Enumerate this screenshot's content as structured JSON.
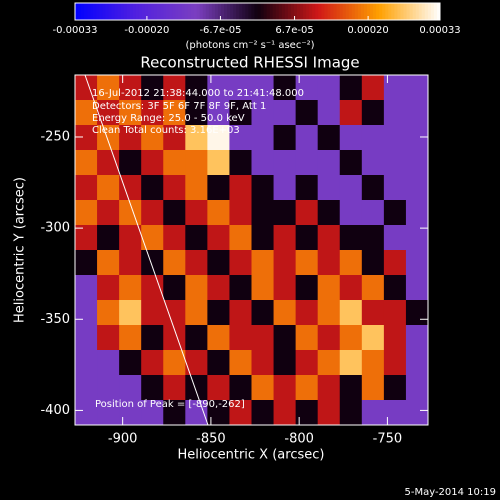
{
  "chart_data": {
    "type": "heatmap",
    "title": "Reconstructed RHESSI Image",
    "colorbar_label": "(photons cm⁻² s⁻¹ asec⁻²)",
    "xlabel": "Heliocentric X (arcsec)",
    "ylabel": "Heliocentric Y (arcsec)",
    "annotations": [
      "16-Jul-2012 21:38:44.000 to 21:41:48.000",
      "Detectors: 3F 5F 6F 7F 8F 9F, Att 1",
      "Energy Range: 25.0 - 50.0 keV",
      "Clean    Total counts: 3.16E+03"
    ],
    "peak_label": "Position of Peak = [-890,-262]",
    "footer": "5-May-2014 10:19",
    "xlim": [
      -927,
      -727
    ],
    "ylim": [
      -408,
      -216
    ],
    "xticks": [
      -900,
      -850,
      -800,
      -750
    ],
    "yticks": [
      -250,
      -300,
      -350,
      -400
    ],
    "clim": [
      -0.00033,
      0.00033
    ],
    "cticks": [
      -0.00033,
      {
        "value": -0.0002,
        "label": "-0.00020"
      },
      {
        "value": -6.7e-05,
        "label": "-6.7e-05"
      },
      {
        "value": 6.7e-05,
        "label": "6.7e-05"
      },
      {
        "value": 0.0002,
        "label": "0.00020"
      },
      0.00033
    ],
    "colormap": [
      "#0000ff",
      "#5020e0",
      "#7b3fc0",
      "#100010",
      "#d01818",
      "#ffa000",
      "#ffffff"
    ],
    "values": [
      [
        0.0001,
        0.00018,
        0.0001,
        0,
        0.0001,
        0,
        -0.00012,
        -0.00012,
        -0.00012,
        0,
        -0.00012,
        -0.00012,
        0,
        0.0001,
        -0.00012,
        -0.00012
      ],
      [
        0.00018,
        0.0001,
        0.00018,
        0.0001,
        0.00018,
        0,
        -0.00012,
        0,
        -0.00012,
        -0.00012,
        0,
        -0.00012,
        0.0001,
        0,
        -0.00012,
        -0.00012
      ],
      [
        0.0001,
        0.00018,
        0.0001,
        0.00018,
        0.0001,
        0.00026,
        0.00032,
        -0.00012,
        -0.00012,
        0,
        -0.00012,
        0,
        -0.00012,
        -0.00012,
        -0.00012,
        -0.00012
      ],
      [
        0.00018,
        0.0001,
        0,
        0.0001,
        0.00018,
        0.00018,
        0.00026,
        0,
        -0.00012,
        -0.00012,
        -0.00012,
        -0.00012,
        0,
        -0.00012,
        -0.00012,
        -0.00012
      ],
      [
        0.0001,
        0.00018,
        0.0001,
        0,
        0.0001,
        0.00018,
        0,
        0.0001,
        0,
        -0.00012,
        0,
        -0.00012,
        -0.00012,
        0,
        -0.00012,
        -0.00012
      ],
      [
        0.00018,
        0.0001,
        0.00018,
        0.0001,
        0,
        0.0001,
        0.00018,
        0.0001,
        0,
        0,
        0.0001,
        0,
        -0.00012,
        -0.00012,
        0,
        -0.00012
      ],
      [
        0.0001,
        0,
        0.0001,
        0.00018,
        0.0001,
        0,
        0.0001,
        0.00018,
        0,
        0.0001,
        0,
        0.0001,
        0,
        0,
        -0.00012,
        -0.00012
      ],
      [
        0,
        0.00018,
        0.0001,
        0,
        0.00018,
        0.0001,
        0,
        0.0001,
        0.00018,
        0.0001,
        0.00018,
        0.0001,
        0.00018,
        0,
        0.0001,
        -0.00012
      ],
      [
        -0.00012,
        0.0001,
        0.00018,
        0.0001,
        0,
        0.00018,
        0.0001,
        0,
        0.00018,
        0.0001,
        0,
        0.00018,
        0.0001,
        0.00018,
        0,
        -0.00012
      ],
      [
        -0.00012,
        0.00018,
        0.00026,
        0.0001,
        0.0001,
        0.00018,
        0,
        0.0001,
        0,
        0.00018,
        0.0001,
        0.00018,
        0.00026,
        0.0001,
        0.0001,
        0
      ],
      [
        -0.00012,
        0.0001,
        0.00018,
        0,
        0.0001,
        0,
        0.00018,
        0.0001,
        0.0001,
        0,
        0.00018,
        0.0001,
        0.00018,
        0.00026,
        0.0001,
        -0.00012
      ],
      [
        -0.00012,
        -0.00012,
        0,
        0.0001,
        0.00018,
        0.0001,
        0,
        0.00018,
        0.0001,
        0,
        0.0001,
        0.00018,
        0.00026,
        0.00018,
        0.0001,
        -0.00012
      ],
      [
        -0.00012,
        -0.00012,
        -0.00012,
        0,
        0.0001,
        0,
        0.0001,
        0,
        0.00018,
        0.0001,
        0.00018,
        0.0001,
        0,
        0.00018,
        0,
        -0.00012
      ],
      [
        -0.00012,
        -0.00012,
        -0.00012,
        -0.00012,
        0,
        -0.00012,
        0,
        0.0001,
        0,
        0.0001,
        0,
        0.0001,
        0,
        -0.00012,
        -0.00012,
        -0.00012
      ]
    ]
  }
}
